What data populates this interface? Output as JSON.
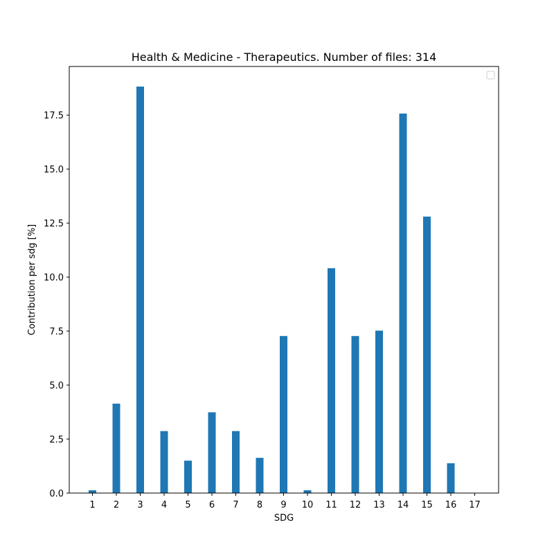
{
  "chart_data": {
    "type": "bar",
    "title": "Health & Medicine - Therapeutics. Number of files: 314",
    "xlabel": "SDG",
    "ylabel": "Contribution per sdg [%]",
    "categories": [
      "1",
      "2",
      "3",
      "4",
      "5",
      "6",
      "7",
      "8",
      "9",
      "10",
      "11",
      "12",
      "13",
      "14",
      "15",
      "16",
      "17"
    ],
    "values": [
      0.13,
      4.14,
      18.82,
      2.87,
      1.5,
      3.74,
      2.87,
      1.63,
      7.27,
      0.13,
      10.41,
      7.27,
      7.52,
      17.57,
      12.8,
      1.38,
      0.0
    ],
    "ylim": [
      0,
      19.75
    ],
    "yticks": [
      0.0,
      2.5,
      5.0,
      7.5,
      10.0,
      12.5,
      15.0,
      17.5
    ],
    "ytick_labels": [
      "0.0",
      "2.5",
      "5.0",
      "7.5",
      "10.0",
      "12.5",
      "15.0",
      "17.5"
    ],
    "bar_color": "#1f77b4",
    "grid": false,
    "legend": {
      "placement": "top-right",
      "entries": []
    }
  }
}
